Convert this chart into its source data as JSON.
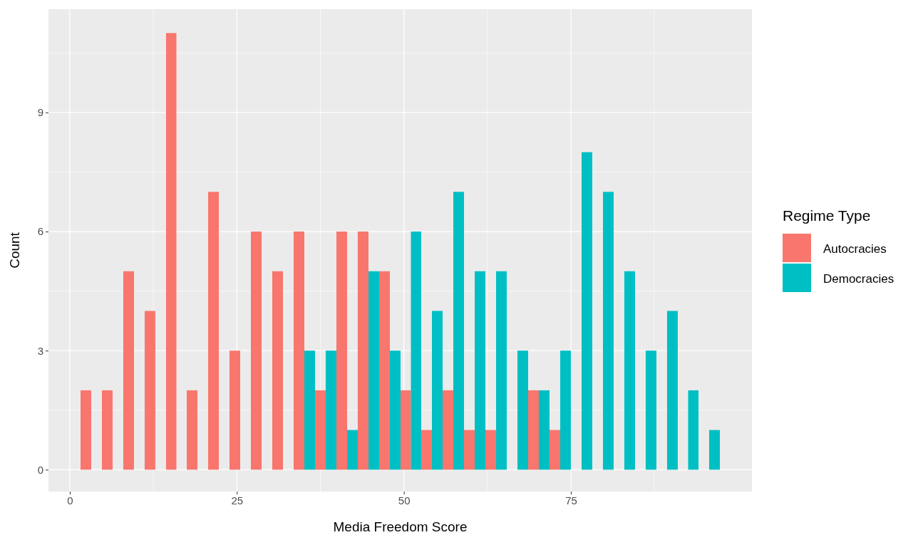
{
  "chart_data": {
    "type": "histogram",
    "xlabel": "Media Freedom Score",
    "ylabel": "Count",
    "legend_title": "Regime Type",
    "bins": [
      1.6,
      4.8,
      8.0,
      11.2,
      14.4,
      17.5,
      20.7,
      23.9,
      27.1,
      30.3,
      33.5,
      36.7,
      39.9,
      43.1,
      46.3,
      49.5,
      52.6,
      55.8,
      59.0,
      62.2,
      65.4,
      68.6,
      71.8,
      75.0,
      78.2,
      81.4,
      84.6,
      87.8,
      91.0,
      94.1,
      97.3
    ],
    "series": [
      {
        "name": "Autocracies",
        "color": "#f8766d",
        "values": [
          2,
          2,
          5,
          4,
          11,
          2,
          7,
          3,
          6,
          5,
          6,
          2,
          6,
          6,
          5,
          2,
          1,
          2,
          1,
          1,
          0,
          2,
          1,
          0,
          0,
          0,
          0,
          0,
          0,
          0
        ]
      },
      {
        "name": "Democracies",
        "color": "#00bfc4",
        "values": [
          0,
          0,
          0,
          0,
          0,
          0,
          0,
          0,
          0,
          0,
          3,
          3,
          1,
          5,
          3,
          6,
          4,
          7,
          5,
          5,
          3,
          2,
          3,
          8,
          7,
          5,
          3,
          4,
          2,
          1
        ]
      }
    ],
    "xlim": [
      -3.2,
      102.1
    ],
    "ylim": [
      -0.55,
      11.6
    ],
    "xticks": [
      0,
      25,
      50,
      75
    ],
    "yticks": [
      0,
      3,
      6,
      9
    ],
    "grid": true,
    "legend": "right"
  }
}
